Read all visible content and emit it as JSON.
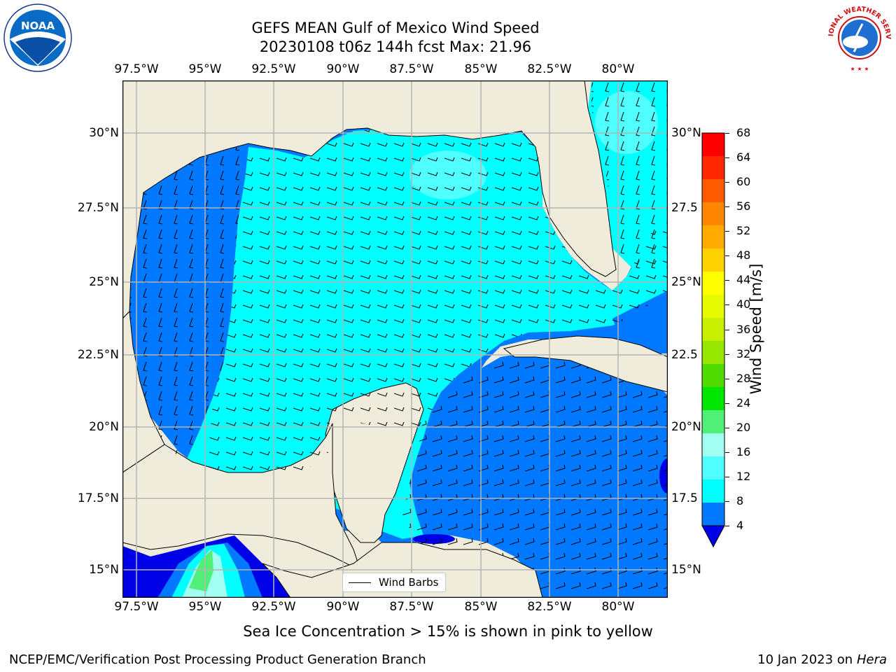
{
  "header": {
    "title_line1": "GEFS MEAN Gulf of Mexico Wind Speed",
    "title_line2": "20230108 t06z 144h fcst   Max: 21.96"
  },
  "logos": {
    "left": "noaa-logo",
    "right": "nws-logo",
    "right_ring_text": "NATIONAL WEATHER SERVICE"
  },
  "map": {
    "lon_labels": [
      "97.5°W",
      "95°W",
      "92.5°W",
      "90°W",
      "87.5°W",
      "85°W",
      "82.5°W",
      "80°W"
    ],
    "lat_labels_left": [
      "30°N",
      "27.5°N",
      "25°N",
      "22.5°N",
      "20°N",
      "17.5°N",
      "15°N"
    ],
    "lat_labels_right": [
      "30°N",
      "27.5",
      "25°N",
      "22.5",
      "20°N",
      "17.5",
      "15°N"
    ],
    "land_color": "#efecdc",
    "grid_color": "#b4b4b4"
  },
  "legend": {
    "wind_barbs_label": "Wind Barbs"
  },
  "colorbar": {
    "title": "Wind Speed [m/s]",
    "ticks": [
      "68",
      "64",
      "60",
      "56",
      "52",
      "48",
      "44",
      "40",
      "36",
      "32",
      "28",
      "24",
      "20",
      "16",
      "12",
      "8",
      "4"
    ],
    "colors": [
      "#ff0000",
      "#ff2800",
      "#ff5a00",
      "#ff8700",
      "#ffaa00",
      "#ffd200",
      "#ffff00",
      "#e6fa00",
      "#c8f000",
      "#96e600",
      "#50dc00",
      "#00e600",
      "#50f078",
      "#a0fff0",
      "#50ffff",
      "#00ffff",
      "#0078ff"
    ],
    "extend_color": "#0000e6"
  },
  "caption": "Sea Ice Concentration > 15% is shown in pink to yellow",
  "footer": {
    "left": "NCEP/EMC/Verification Post Processing Product Generation Branch",
    "right_date": "10 Jan 2023 on",
    "right_machine": "Hera"
  }
}
